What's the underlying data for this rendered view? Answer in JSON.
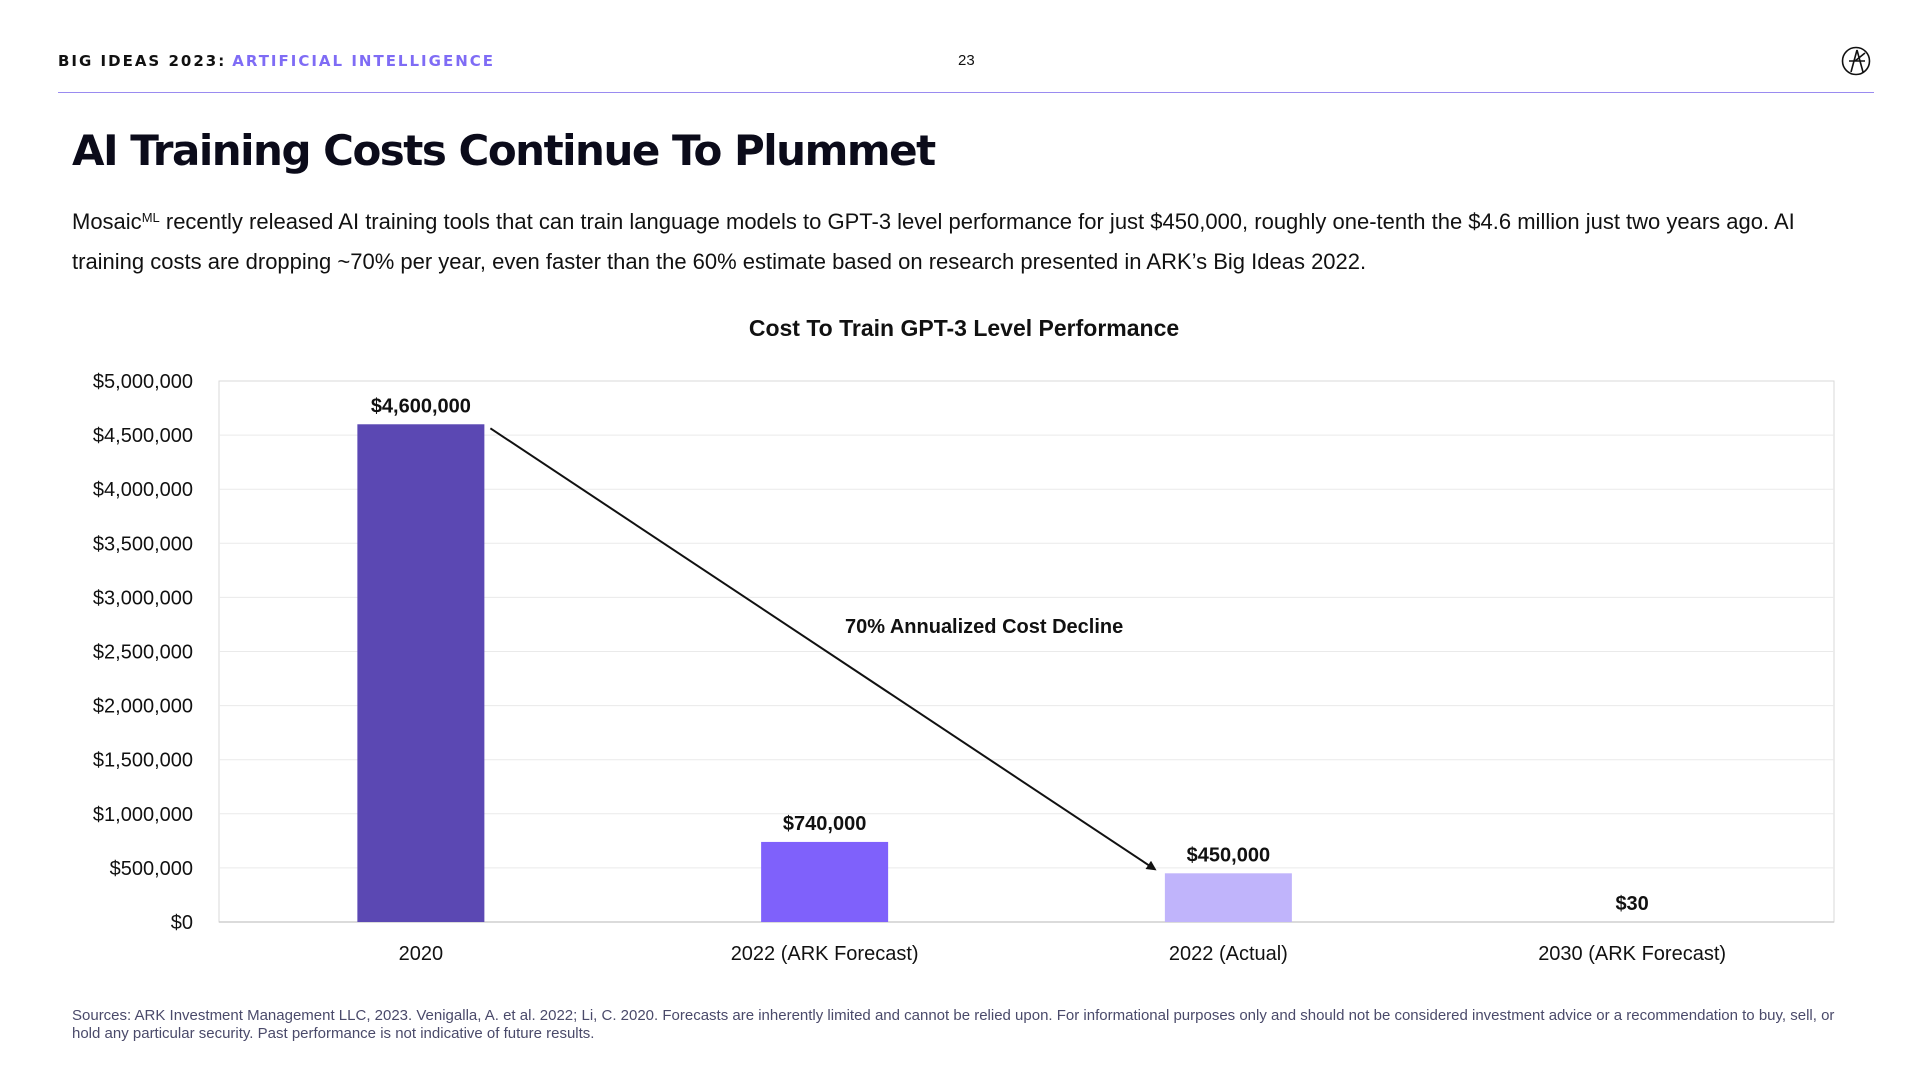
{
  "header": {
    "brand": "BIG IDEAS 2023:",
    "topic": "ARTIFICIAL INTELLIGENCE",
    "page_number": "23",
    "logo_icon": "ark-logo-icon"
  },
  "slide": {
    "title": "AI Training Costs Continue To Plummet",
    "body_before": "Mosaic",
    "body_superscript": "ML",
    "body_after": " recently released AI training tools that can train language models to GPT-3 level performance for just $450,000, roughly one-tenth the $4.6 million just two years ago. AI training costs are dropping ~70% per year, even faster than the 60% estimate based on research presented in ARK’s Big Ideas 2022."
  },
  "chart_data": {
    "type": "bar",
    "title": "Cost To Train GPT-3 Level Performance",
    "xlabel": "",
    "ylabel": "",
    "categories": [
      "2020",
      "2022 (ARK Forecast)",
      "2022 (Actual)",
      "2030 (ARK Forecast)"
    ],
    "values": [
      4600000,
      740000,
      450000,
      30
    ],
    "value_labels": [
      "$4,600,000",
      "$740,000",
      "$450,000",
      "$30"
    ],
    "colors": [
      "#5b48b3",
      "#7f61fb",
      "#c0b4fb",
      "#c0b4fb"
    ],
    "ylim": [
      0,
      5000000
    ],
    "y_ticks": [
      0,
      500000,
      1000000,
      1500000,
      2000000,
      2500000,
      3000000,
      3500000,
      4000000,
      4500000,
      5000000
    ],
    "y_tick_labels": [
      "$0",
      "$500,000",
      "$1,000,000",
      "$1,500,000",
      "$2,000,000",
      "$2,500,000",
      "$3,000,000",
      "$3,500,000",
      "$4,000,000",
      "$4,500,000",
      "$5,000,000"
    ],
    "grid": true,
    "annotation": {
      "text": "70% Annualized Cost Decline",
      "from_category": "2020",
      "to_category": "2022 (Actual)"
    }
  },
  "footer": {
    "sources": "Sources: ARK Investment Management LLC, 2023. Venigalla, A. et al. 2022; Li, C. 2020. Forecasts are inherently limited and cannot be relied upon. For informational purposes only and should not be considered investment advice or a recommendation to buy, sell, or hold any particular security. Past performance is not indicative of future results."
  }
}
